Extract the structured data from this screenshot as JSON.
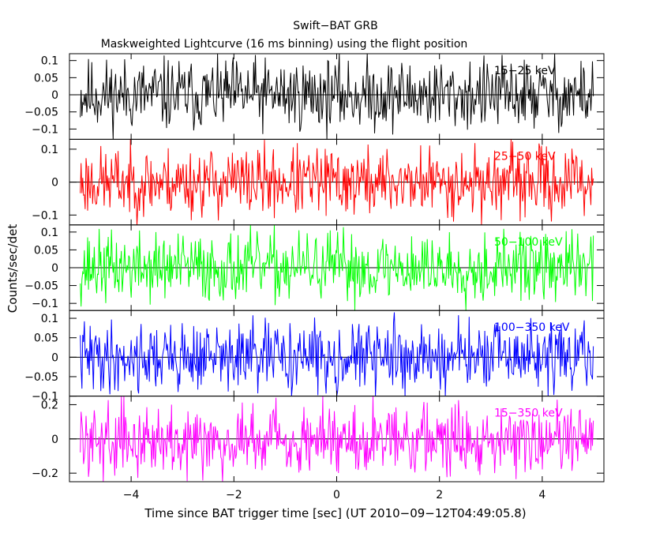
{
  "chart_data": {
    "type": "line",
    "title": "Swift−BAT GRB",
    "subtitle": "Maskweighted Lightcurve (16 ms binning) using the flight position",
    "xlabel": "Time since BAT trigger time [sec] (UT 2010−09−12T04:49:05.8)",
    "ylabel": "Counts/sec/det",
    "xlim": [
      -5.2,
      5.2
    ],
    "x_ticks": [
      {
        "value": -4,
        "label": "−4"
      },
      {
        "value": -2,
        "label": "−2"
      },
      {
        "value": 0,
        "label": "0"
      },
      {
        "value": 2,
        "label": "2"
      },
      {
        "value": 4,
        "label": "4"
      }
    ],
    "x_range_data": [
      -4.99,
      4.99
    ],
    "bin_width_s": 0.016,
    "grid": false,
    "panels": [
      {
        "band": "15−25 keV",
        "color": "#000000",
        "ylim": [
          -0.13,
          0.12
        ],
        "yticks": [
          {
            "value": 0.1,
            "label": "0.1"
          },
          {
            "value": 0.05,
            "label": "0.05"
          },
          {
            "value": 0,
            "label": "0"
          },
          {
            "value": -0.05,
            "label": "−0.05"
          },
          {
            "value": -0.1,
            "label": "−0.1"
          }
        ],
        "amplitude": 0.13,
        "seed": 11
      },
      {
        "band": "25−50 keV",
        "color": "#ff0000",
        "ylim": [
          -0.13,
          0.13
        ],
        "yticks": [
          {
            "value": 0.1,
            "label": "0.1"
          },
          {
            "value": 0,
            "label": "0"
          },
          {
            "value": -0.1,
            "label": "−0.1"
          }
        ],
        "amplitude": 0.13,
        "seed": 23
      },
      {
        "band": "50−100 keV",
        "color": "#00ff00",
        "ylim": [
          -0.12,
          0.12
        ],
        "yticks": [
          {
            "value": 0.1,
            "label": "0.1"
          },
          {
            "value": 0.05,
            "label": "0.05"
          },
          {
            "value": 0,
            "label": "0"
          },
          {
            "value": -0.05,
            "label": "−0.05"
          },
          {
            "value": -0.1,
            "label": "−0.1"
          }
        ],
        "amplitude": 0.12,
        "seed": 37
      },
      {
        "band": "100−350 keV",
        "color": "#0000ff",
        "ylim": [
          -0.1,
          0.12
        ],
        "yticks": [
          {
            "value": 0.1,
            "label": "0.1"
          },
          {
            "value": 0.05,
            "label": "0.05"
          },
          {
            "value": 0,
            "label": "0"
          },
          {
            "value": -0.05,
            "label": "−0.05"
          },
          {
            "value": -0.1,
            "label": "−0.1"
          }
        ],
        "amplitude": 0.11,
        "seed": 41
      },
      {
        "band": "15−350 keV",
        "color": "#ff00ff",
        "ylim": [
          -0.25,
          0.25
        ],
        "yticks": [
          {
            "value": 0.2,
            "label": "0.2"
          },
          {
            "value": 0,
            "label": "0"
          },
          {
            "value": -0.2,
            "label": "−0.2"
          }
        ],
        "amplitude": 0.25,
        "seed": 59
      }
    ]
  }
}
